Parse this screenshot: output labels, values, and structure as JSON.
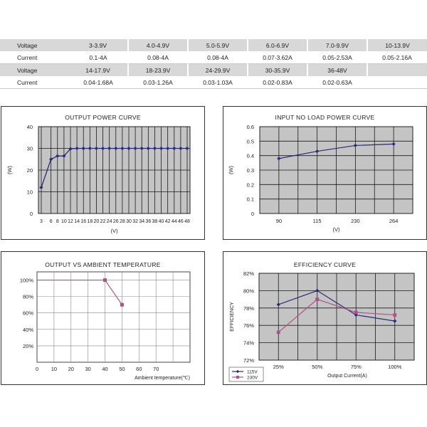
{
  "spec_table": {
    "rows": [
      {
        "label": "Voltage",
        "cells": [
          "3-3.9V",
          "4.0-4.9V",
          "5.0-5.9V",
          "6.0-6.9V",
          "7.0-9.9V",
          "10-13.9V"
        ]
      },
      {
        "label": "Current",
        "cells": [
          "0.1-4A",
          "0.08-4A",
          "0.08-4A",
          "0.07-3.62A",
          "0.05-2.53A",
          "0.05-2.16A"
        ]
      },
      {
        "label": "Voltage",
        "cells": [
          "14-17.9V",
          "18-23.9V",
          "24-29.9V",
          "30-35.9V",
          "36-48V",
          ""
        ]
      },
      {
        "label": "Current",
        "cells": [
          "0.04-1.68A",
          "0.03-1.26A",
          "0.03-1.03A",
          "0.02-0.83A",
          "0.02-0.63A",
          ""
        ]
      }
    ]
  },
  "chart_data": [
    {
      "type": "line",
      "title": "OUTPUT POWER CURVE",
      "xlabel": "(V)",
      "ylabel": "(W)",
      "x_ticks": [
        3,
        6,
        8,
        10,
        12,
        14,
        16,
        18,
        20,
        22,
        24,
        26,
        28,
        30,
        32,
        34,
        36,
        38,
        40,
        42,
        44,
        46,
        48
      ],
      "x_tick_labels": [
        "3",
        "6",
        "8",
        "10",
        "12",
        "14",
        "16",
        "18",
        "20",
        "22",
        "24",
        "26",
        "28",
        "30",
        "32",
        "34",
        "36",
        "38",
        "40",
        "42",
        "44",
        "46",
        "48"
      ],
      "ylim": [
        0,
        40
      ],
      "y_ticks": [
        0,
        10,
        20,
        30,
        40
      ],
      "grid": true,
      "series": [
        {
          "x": [
            3,
            6,
            8,
            10,
            12,
            14,
            16,
            18,
            20,
            22,
            24,
            26,
            28,
            30,
            32,
            34,
            36,
            38,
            40,
            42,
            44,
            46,
            48
          ],
          "y": [
            12,
            25,
            26.5,
            26.5,
            29.8,
            30,
            30,
            30,
            30,
            30,
            30,
            30,
            30,
            30,
            30,
            30,
            30,
            30,
            30,
            30,
            30,
            30,
            30
          ]
        }
      ],
      "colors": {
        "line": "#2a2a7a",
        "bg": "#c4c4c4"
      }
    },
    {
      "type": "line",
      "title": "INPUT NO LOAD POWER CURVE",
      "xlabel": "(V)",
      "ylabel": "(W)",
      "categories": [
        "90",
        "115",
        "230",
        "264"
      ],
      "ylim": [
        0,
        0.6
      ],
      "y_ticks": [
        0,
        0.1,
        0.2,
        0.3,
        0.4,
        0.5,
        0.6
      ],
      "y_tick_labels": [
        "0",
        "0.1",
        "0.2",
        "0.3",
        "0.4",
        "0.5",
        "0.6"
      ],
      "grid": true,
      "series": [
        {
          "values": [
            0.38,
            0.43,
            0.47,
            0.48
          ]
        }
      ],
      "colors": {
        "line": "#2a2a7a",
        "bg": "#c4c4c4"
      }
    },
    {
      "type": "line",
      "title": "OUTPUT VS AMBIENT TEMPERATURE",
      "xlabel": "Ambient temperature(℃)",
      "ylabel": "",
      "xlim": [
        0,
        90
      ],
      "x_ticks": [
        0,
        10,
        20,
        30,
        40,
        50,
        60,
        70
      ],
      "y_ticks": [
        20,
        40,
        60,
        80,
        100
      ],
      "y_tick_labels": [
        "20%",
        "40%",
        "60%",
        "80%",
        "100%"
      ],
      "ylim": [
        0,
        110
      ],
      "grid": true,
      "series": [
        {
          "x": [
            0,
            40,
            50
          ],
          "y": [
            100,
            100,
            70
          ]
        }
      ],
      "colors": {
        "line": "#b0508a",
        "bg": "#ffffff"
      }
    },
    {
      "type": "line",
      "title": "EFFICIENCY CURVE",
      "xlabel": "Output Current(A)",
      "ylabel": "EFFICIENCY",
      "categories": [
        "25%",
        "50%",
        "75%",
        "100%"
      ],
      "ylim": [
        72,
        82
      ],
      "y_ticks": [
        72,
        74,
        76,
        78,
        80,
        82
      ],
      "y_tick_labels": [
        "72%",
        "74%",
        "76%",
        "78%",
        "80%",
        "82%"
      ],
      "grid": true,
      "legend": "bottom-left",
      "series": [
        {
          "name": "115V",
          "values": [
            78.4,
            80,
            77.2,
            76.5
          ],
          "color": "#2a2a7a"
        },
        {
          "name": "230V",
          "values": [
            75.2,
            79,
            77.5,
            77.2
          ],
          "color": "#b0508a"
        }
      ],
      "colors": {
        "bg": "#c4c4c4"
      }
    }
  ]
}
